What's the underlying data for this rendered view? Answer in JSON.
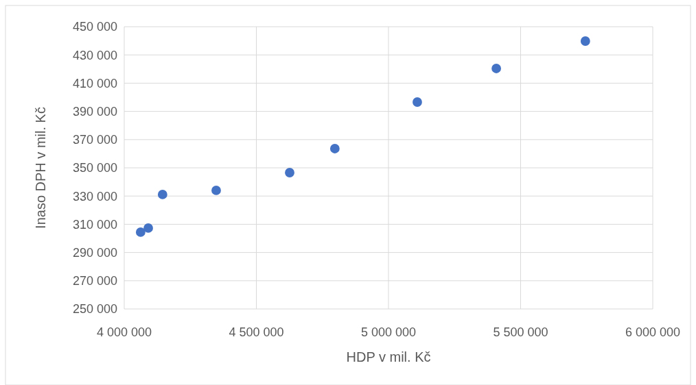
{
  "chart_data": {
    "type": "scatter",
    "xlabel": "HDP v mil. Kč",
    "ylabel": "Inaso DPH v mil. Kč",
    "x": [
      4062000,
      4091000,
      4145000,
      4348000,
      4626000,
      4797000,
      5109000,
      5408000,
      5745000
    ],
    "series": [
      {
        "color": "#4472c4",
        "values": [
          304400,
          307300,
          331100,
          334000,
          346600,
          363600,
          396600,
          420400,
          439800
        ]
      }
    ],
    "xlim": [
      4000000,
      6000000
    ],
    "xticks": [
      {
        "value": 4000000,
        "label": "4 000 000"
      },
      {
        "value": 4500000,
        "label": "4 500 000"
      },
      {
        "value": 5000000,
        "label": "5 000 000"
      },
      {
        "value": 5500000,
        "label": "5 500 000"
      },
      {
        "value": 6000000,
        "label": "6 000 000"
      }
    ],
    "ylim": [
      250000,
      450000
    ],
    "yticks": [
      {
        "value": 250000,
        "label": "250 000"
      },
      {
        "value": 270000,
        "label": "270 000"
      },
      {
        "value": 290000,
        "label": "290 000"
      },
      {
        "value": 310000,
        "label": "310 000"
      },
      {
        "value": 330000,
        "label": "330 000"
      },
      {
        "value": 350000,
        "label": "350 000"
      },
      {
        "value": 370000,
        "label": "370 000"
      },
      {
        "value": 390000,
        "label": "390 000"
      },
      {
        "value": 410000,
        "label": "410 000"
      },
      {
        "value": 430000,
        "label": "430 000"
      },
      {
        "value": 450000,
        "label": "450 000"
      }
    ],
    "grid": true,
    "marker": "circle"
  }
}
